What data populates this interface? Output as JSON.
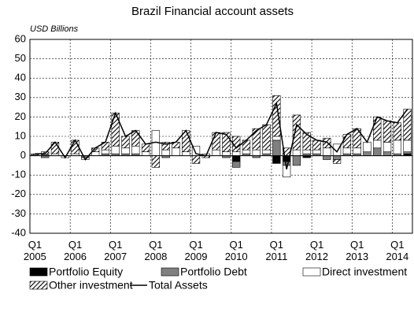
{
  "chart_data": {
    "type": "bar",
    "stacked": true,
    "title": "Brazil Financial account assets",
    "y_label": "USD Billions",
    "categories": [
      "Q1\n2005",
      null,
      null,
      null,
      "Q1\n2006",
      null,
      null,
      null,
      "Q1\n2007",
      null,
      null,
      null,
      "Q1\n2008",
      null,
      null,
      null,
      "Q1\n2009",
      null,
      null,
      null,
      "Q1\n2010",
      null,
      null,
      null,
      "Q1\n2011",
      null,
      null,
      null,
      "Q1\n2012",
      null,
      null,
      null,
      "Q1\n2013",
      null,
      null,
      null,
      "Q1\n2014",
      null
    ],
    "series": [
      {
        "name": "Portfolio Equity",
        "color": "#000000",
        "values": [
          0,
          0,
          0,
          0,
          0,
          0,
          0,
          0,
          0,
          0,
          0,
          0,
          0,
          0,
          0,
          0,
          0,
          0,
          0,
          0,
          -3,
          0,
          0,
          0,
          -4,
          -3,
          0,
          -1,
          0,
          0,
          0,
          0,
          0,
          0,
          0,
          0,
          0,
          1
        ]
      },
      {
        "name": "Portfolio Debt",
        "color": "#808080",
        "values": [
          0,
          -1,
          0,
          0,
          0,
          -1,
          0,
          1,
          1,
          1,
          1,
          0,
          0,
          -1,
          0,
          0,
          0,
          0,
          0,
          -1,
          -3,
          1,
          -1,
          1,
          8,
          -2,
          -5,
          1,
          1,
          -2,
          -2,
          1,
          1,
          2,
          4,
          2,
          1,
          1
        ]
      },
      {
        "name": "Direct investment",
        "color": "#ffffff",
        "values": [
          0.5,
          0.5,
          1,
          -1,
          1,
          -1,
          2,
          2,
          4,
          3,
          4,
          2,
          13,
          3,
          4,
          2,
          5,
          1,
          3,
          2,
          2,
          2,
          3,
          2,
          2,
          -6,
          3,
          2,
          2,
          4,
          6,
          3,
          3,
          5,
          4,
          5,
          7,
          6
        ]
      },
      {
        "name": "Other investment",
        "color": "#000000",
        "pattern": "hatch",
        "values": [
          0.5,
          1.5,
          6,
          0,
          7,
          0,
          2,
          4,
          17,
          6,
          8,
          4,
          -6,
          4,
          3,
          11,
          -4,
          -1,
          9,
          10,
          8,
          5,
          11,
          13,
          21,
          4,
          18,
          9,
          5,
          5,
          -2,
          7,
          10,
          0,
          12,
          11,
          9,
          16
        ]
      },
      {
        "name": "Total Assets",
        "type": "line",
        "color": "#000000",
        "values": [
          1,
          1,
          7,
          -1,
          8,
          -2,
          4,
          7,
          22,
          10,
          13,
          6,
          7,
          6,
          7,
          13,
          1,
          0,
          12,
          11,
          4,
          8,
          13,
          16,
          27,
          -7,
          16,
          11,
          8,
          7,
          2,
          11,
          14,
          7,
          20,
          18,
          17,
          24
        ]
      }
    ],
    "ylim": [
      -40,
      60
    ],
    "yticks": [
      -40,
      -30,
      -20,
      -10,
      0,
      10,
      20,
      30,
      40,
      50,
      60
    ],
    "grid": true
  }
}
